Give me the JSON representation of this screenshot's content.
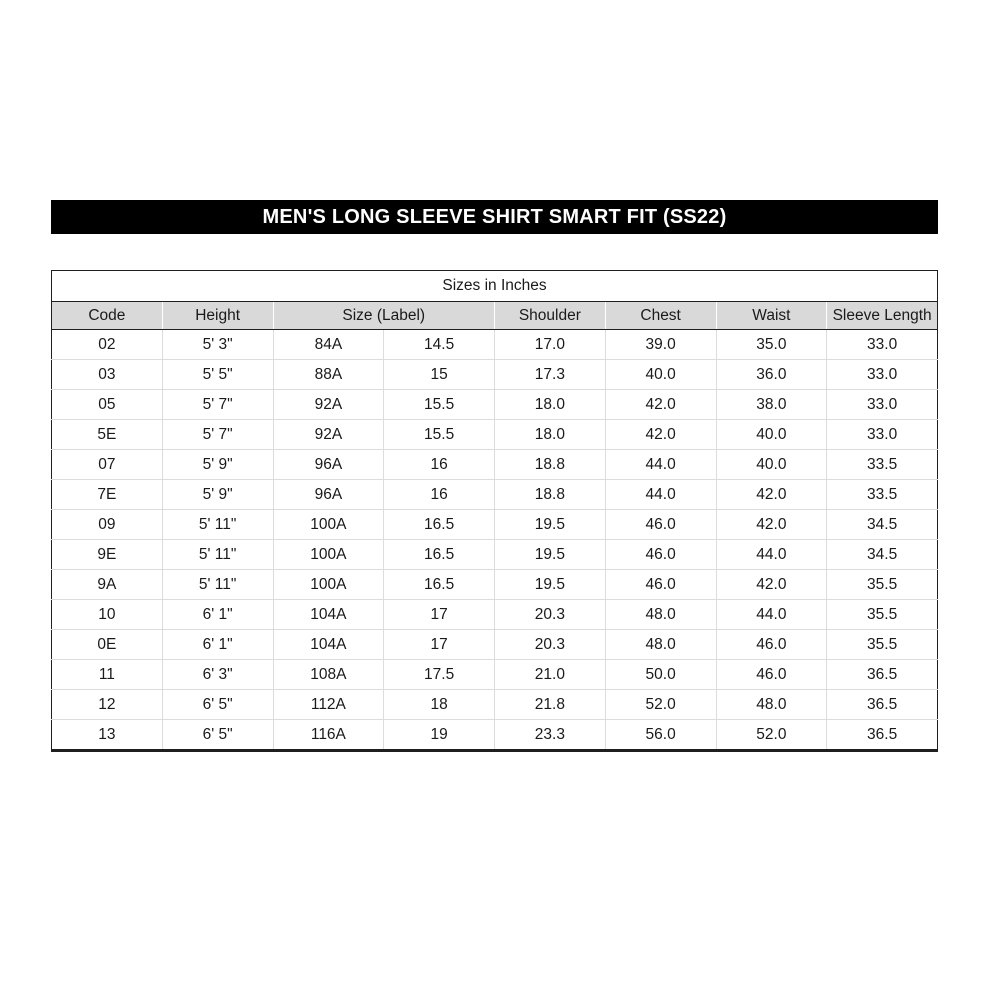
{
  "page": {
    "title": "MEN'S LONG SLEEVE SHIRT SMART FIT (SS22)"
  },
  "table": {
    "caption": "Sizes in Inches",
    "headers": [
      {
        "label": "Code",
        "span": 1
      },
      {
        "label": "Height",
        "span": 1
      },
      {
        "label": "Size (Label)",
        "span": 2
      },
      {
        "label": "Shoulder",
        "span": 1
      },
      {
        "label": "Chest",
        "span": 1
      },
      {
        "label": "Waist",
        "span": 1
      },
      {
        "label": "Sleeve Length",
        "span": 1
      }
    ],
    "rows": [
      [
        "02",
        "5' 3\"",
        "84A",
        "14.5",
        "17.0",
        "39.0",
        "35.0",
        "33.0"
      ],
      [
        "03",
        "5' 5\"",
        "88A",
        "15",
        "17.3",
        "40.0",
        "36.0",
        "33.0"
      ],
      [
        "05",
        "5' 7\"",
        "92A",
        "15.5",
        "18.0",
        "42.0",
        "38.0",
        "33.0"
      ],
      [
        "5E",
        "5' 7\"",
        "92A",
        "15.5",
        "18.0",
        "42.0",
        "40.0",
        "33.0"
      ],
      [
        "07",
        "5' 9\"",
        "96A",
        "16",
        "18.8",
        "44.0",
        "40.0",
        "33.5"
      ],
      [
        "7E",
        "5' 9\"",
        "96A",
        "16",
        "18.8",
        "44.0",
        "42.0",
        "33.5"
      ],
      [
        "09",
        "5' 11\"",
        "100A",
        "16.5",
        "19.5",
        "46.0",
        "42.0",
        "34.5"
      ],
      [
        "9E",
        "5' 11\"",
        "100A",
        "16.5",
        "19.5",
        "46.0",
        "44.0",
        "34.5"
      ],
      [
        "9A",
        "5' 11\"",
        "100A",
        "16.5",
        "19.5",
        "46.0",
        "42.0",
        "35.5"
      ],
      [
        "10",
        "6' 1\"",
        "104A",
        "17",
        "20.3",
        "48.0",
        "44.0",
        "35.5"
      ],
      [
        "0E",
        "6' 1\"",
        "104A",
        "17",
        "20.3",
        "48.0",
        "46.0",
        "35.5"
      ],
      [
        "11",
        "6' 3\"",
        "108A",
        "17.5",
        "21.0",
        "50.0",
        "46.0",
        "36.5"
      ],
      [
        "12",
        "6' 5\"",
        "112A",
        "18",
        "21.8",
        "52.0",
        "48.0",
        "36.5"
      ],
      [
        "13",
        "6' 5\"",
        "116A",
        "19",
        "23.3",
        "56.0",
        "52.0",
        "36.5"
      ]
    ]
  },
  "colors": {
    "title_bg": "#000000",
    "title_text": "#ffffff",
    "header_bg": "#d9d9d9",
    "grid_line": "#dcdcdc",
    "outer_border": "#1f1f1f"
  },
  "chart_data": {
    "type": "table",
    "title": "MEN'S LONG SLEEVE SHIRT SMART FIT (SS22)",
    "subtitle": "Sizes in Inches",
    "columns": [
      "Code",
      "Height",
      "Size (Label)",
      "Size (Label)",
      "Shoulder",
      "Chest",
      "Waist",
      "Sleeve Length"
    ],
    "header_spans": [
      1,
      1,
      2,
      1,
      1,
      1,
      1
    ],
    "rows": [
      [
        "02",
        "5' 3\"",
        "84A",
        "14.5",
        "17.0",
        "39.0",
        "35.0",
        "33.0"
      ],
      [
        "03",
        "5' 5\"",
        "88A",
        "15",
        "17.3",
        "40.0",
        "36.0",
        "33.0"
      ],
      [
        "05",
        "5' 7\"",
        "92A",
        "15.5",
        "18.0",
        "42.0",
        "38.0",
        "33.0"
      ],
      [
        "5E",
        "5' 7\"",
        "92A",
        "15.5",
        "18.0",
        "42.0",
        "40.0",
        "33.0"
      ],
      [
        "07",
        "5' 9\"",
        "96A",
        "16",
        "18.8",
        "44.0",
        "40.0",
        "33.5"
      ],
      [
        "7E",
        "5' 9\"",
        "96A",
        "16",
        "18.8",
        "44.0",
        "42.0",
        "33.5"
      ],
      [
        "09",
        "5' 11\"",
        "100A",
        "16.5",
        "19.5",
        "46.0",
        "42.0",
        "34.5"
      ],
      [
        "9E",
        "5' 11\"",
        "100A",
        "16.5",
        "19.5",
        "46.0",
        "44.0",
        "34.5"
      ],
      [
        "9A",
        "5' 11\"",
        "100A",
        "16.5",
        "19.5",
        "46.0",
        "42.0",
        "35.5"
      ],
      [
        "10",
        "6' 1\"",
        "104A",
        "17",
        "20.3",
        "48.0",
        "44.0",
        "35.5"
      ],
      [
        "0E",
        "6' 1\"",
        "104A",
        "17",
        "20.3",
        "48.0",
        "46.0",
        "35.5"
      ],
      [
        "11",
        "6' 3\"",
        "108A",
        "17.5",
        "21.0",
        "50.0",
        "46.0",
        "36.5"
      ],
      [
        "12",
        "6' 5\"",
        "112A",
        "18",
        "21.8",
        "52.0",
        "48.0",
        "36.5"
      ],
      [
        "13",
        "6' 5\"",
        "116A",
        "19",
        "23.3",
        "56.0",
        "52.0",
        "36.5"
      ]
    ]
  }
}
